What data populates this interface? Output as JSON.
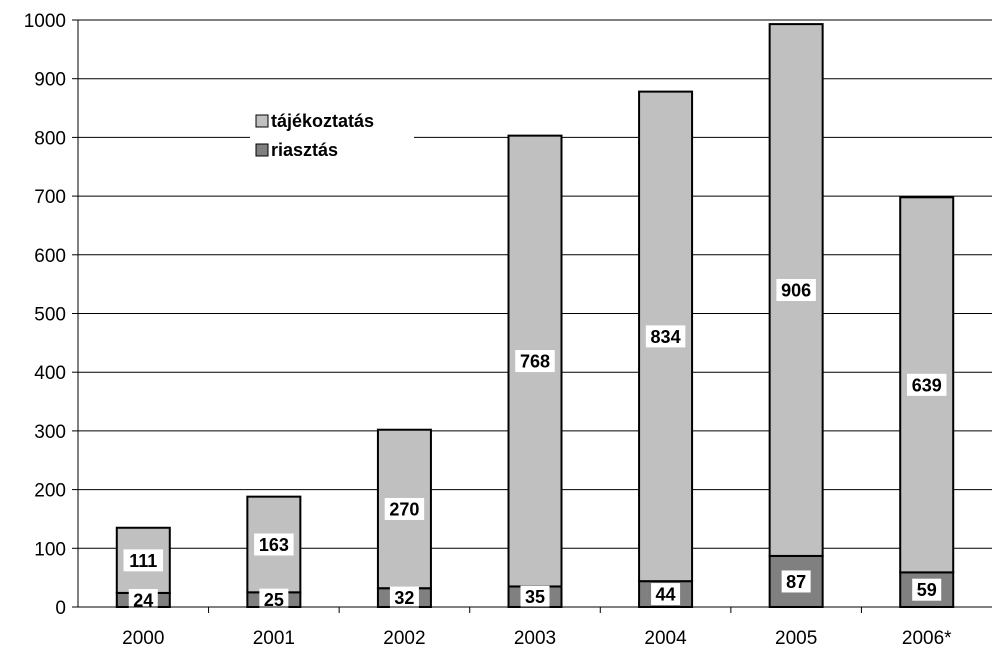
{
  "chart_data": {
    "type": "bar",
    "stacked": true,
    "categories": [
      "2000",
      "2001",
      "2002",
      "2003",
      "2004",
      "2005",
      "2006*"
    ],
    "series": [
      {
        "name": "riasztás",
        "values": [
          24,
          25,
          32,
          35,
          44,
          87,
          59
        ],
        "color": "#808080"
      },
      {
        "name": "tájékoztatás",
        "values": [
          111,
          163,
          270,
          768,
          834,
          906,
          639
        ],
        "color": "#c0c0c0"
      }
    ],
    "legend": {
      "placement": "top-left",
      "entries": [
        {
          "label": "tájékoztatás",
          "color": "#c0c0c0"
        },
        {
          "label": "riasztás",
          "color": "#808080"
        }
      ]
    },
    "title": "",
    "xlabel": "",
    "ylabel": "",
    "ylim": [
      0,
      1000
    ],
    "yticks": [
      "0",
      "100",
      "200",
      "300",
      "400",
      "500",
      "600",
      "700",
      "800",
      "900",
      "1000"
    ],
    "grid": true,
    "data_labels": true
  }
}
